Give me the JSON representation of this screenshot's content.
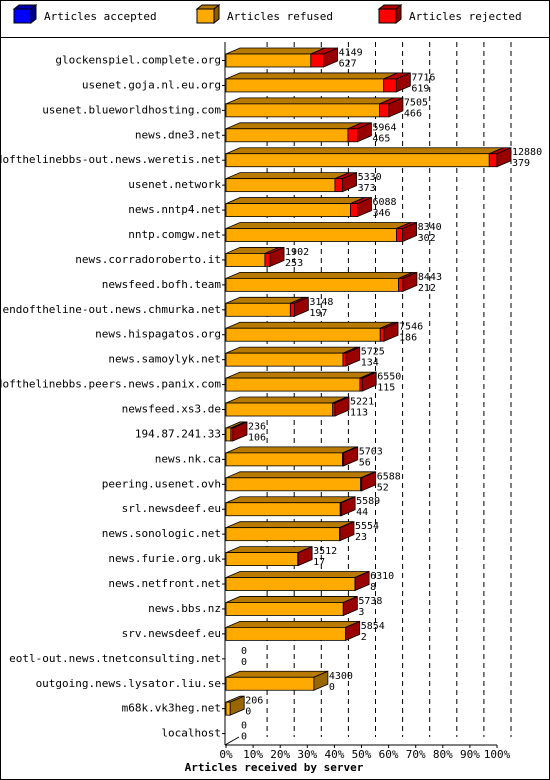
{
  "chart_data": {
    "type": "bar",
    "stacked": true,
    "orientation": "horizontal",
    "style": "3d",
    "xlabel": "Articles received by server",
    "xlim": [
      0,
      100
    ],
    "x_unit": "percent",
    "grid": true,
    "legend_position": "top",
    "xticks": [
      "0%",
      "10%",
      "20%",
      "30%",
      "40%",
      "50%",
      "60%",
      "70%",
      "80%",
      "90%",
      "100%"
    ],
    "series": [
      {
        "name": "Articles accepted",
        "color": "#0000ff"
      },
      {
        "name": "Articles refused",
        "color": "#ffaa00"
      },
      {
        "name": "Articles rejected",
        "color": "#ff0000"
      }
    ],
    "max_total": 13259,
    "rows": [
      {
        "server": "glockenspiel.complete.org",
        "accepted": 0,
        "refused": 4149,
        "rejected": 627
      },
      {
        "server": "usenet.goja.nl.eu.org",
        "accepted": 0,
        "refused": 7716,
        "rejected": 619
      },
      {
        "server": "usenet.blueworldhosting.com",
        "accepted": 0,
        "refused": 7505,
        "rejected": 466
      },
      {
        "server": "news.dne3.net",
        "accepted": 0,
        "refused": 5964,
        "rejected": 465
      },
      {
        "server": "endofthelinebbs-out.news.weretis.net",
        "accepted": 0,
        "refused": 12880,
        "rejected": 379
      },
      {
        "server": "usenet.network",
        "accepted": 0,
        "refused": 5330,
        "rejected": 373
      },
      {
        "server": "news.nntp4.net",
        "accepted": 0,
        "refused": 6088,
        "rejected": 346
      },
      {
        "server": "nntp.comgw.net",
        "accepted": 0,
        "refused": 8340,
        "rejected": 302
      },
      {
        "server": "news.corradoroberto.it",
        "accepted": 0,
        "refused": 1902,
        "rejected": 253
      },
      {
        "server": "newsfeed.bofh.team",
        "accepted": 0,
        "refused": 8443,
        "rejected": 212
      },
      {
        "server": "endoftheline-out.news.chmurka.net",
        "accepted": 0,
        "refused": 3148,
        "rejected": 197
      },
      {
        "server": "news.hispagatos.org",
        "accepted": 0,
        "refused": 7546,
        "rejected": 186
      },
      {
        "server": "news.samoylyk.net",
        "accepted": 0,
        "refused": 5725,
        "rejected": 134
      },
      {
        "server": "endofthelinebbs.peers.news.panix.com",
        "accepted": 0,
        "refused": 6550,
        "rejected": 115
      },
      {
        "server": "newsfeed.xs3.de",
        "accepted": 0,
        "refused": 5221,
        "rejected": 113
      },
      {
        "server": "194.87.241.33",
        "accepted": 0,
        "refused": 236,
        "rejected": 106
      },
      {
        "server": "news.nk.ca",
        "accepted": 0,
        "refused": 5703,
        "rejected": 56
      },
      {
        "server": "peering.usenet.ovh",
        "accepted": 0,
        "refused": 6588,
        "rejected": 52
      },
      {
        "server": "srl.newsdeef.eu",
        "accepted": 0,
        "refused": 5589,
        "rejected": 44
      },
      {
        "server": "news.sonologic.net",
        "accepted": 0,
        "refused": 5554,
        "rejected": 23
      },
      {
        "server": "news.furie.org.uk",
        "accepted": 0,
        "refused": 3512,
        "rejected": 17
      },
      {
        "server": "news.netfront.net",
        "accepted": 0,
        "refused": 6310,
        "rejected": 8
      },
      {
        "server": "news.bbs.nz",
        "accepted": 0,
        "refused": 5738,
        "rejected": 3
      },
      {
        "server": "srv.newsdeef.eu",
        "accepted": 0,
        "refused": 5854,
        "rejected": 2
      },
      {
        "server": "eotl-out.news.tnetconsulting.net",
        "accepted": 0,
        "refused": 0,
        "rejected": 0
      },
      {
        "server": "outgoing.news.lysator.liu.se",
        "accepted": 0,
        "refused": 4300,
        "rejected": 0
      },
      {
        "server": "m68k.vk3heg.net",
        "accepted": 0,
        "refused": 206,
        "rejected": 0
      },
      {
        "server": "localhost",
        "accepted": 0,
        "refused": 0,
        "rejected": 0
      }
    ]
  }
}
